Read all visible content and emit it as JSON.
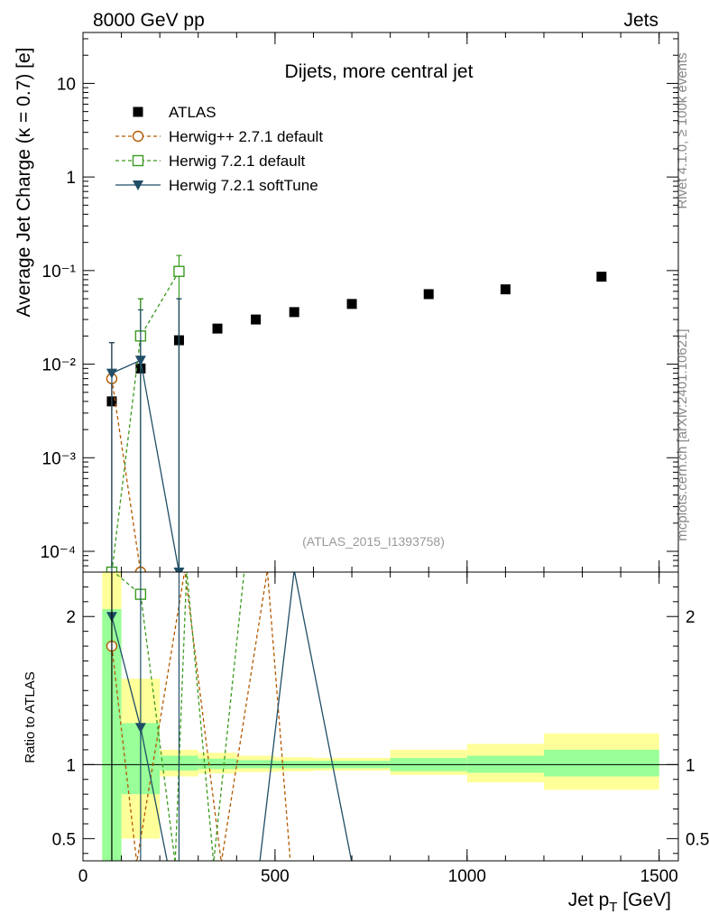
{
  "header": {
    "left": "8000 GeV pp",
    "right": "Jets"
  },
  "side_labels": {
    "rivet": "Rivet 4.1.0, ≥ 100k events",
    "mcplots": "mcplots.cern.ch [arXiv:2401.10621]"
  },
  "chart_data": {
    "type": "scatter",
    "title": "Dijets, more central jet",
    "analysis_tag": "(ATLAS_2015_I1393758)",
    "xlabel": "Jet p",
    "xlabel_sub": "T",
    "xlabel_unit": " [GeV]",
    "ylabel": "Average Jet Charge (κ = 0.7) [e]",
    "ratio_ylabel": "Ratio to ATLAS",
    "xlim": [
      0,
      1550
    ],
    "ylim": [
      6e-05,
      35
    ],
    "yscale": "log",
    "ratio_ylim": [
      0.35,
      2.3
    ],
    "ratio_line": 1,
    "x_ticks": [
      0,
      500,
      1000,
      1500
    ],
    "x_tick_labels": [
      "0",
      "500",
      "1000",
      "1500"
    ],
    "y_ticks": [
      0.0001,
      0.001,
      0.01,
      0.1,
      1,
      10
    ],
    "y_tick_labels": [
      "10⁻⁴",
      "10⁻³",
      "10⁻²",
      "10⁻¹",
      "1",
      "10"
    ],
    "ratio_ticks": [
      0.5,
      1,
      2
    ],
    "ratio_tick_labels": [
      "0.5",
      "1",
      "2"
    ],
    "bins": [
      [
        50,
        100
      ],
      [
        100,
        200
      ],
      [
        200,
        300
      ],
      [
        300,
        400
      ],
      [
        400,
        500
      ],
      [
        500,
        600
      ],
      [
        600,
        800
      ],
      [
        800,
        1000
      ],
      [
        1000,
        1200
      ],
      [
        1200,
        1500
      ]
    ],
    "x": [
      75,
      150,
      250,
      350,
      450,
      550,
      700,
      900,
      1100,
      1350
    ],
    "ratio_bands": {
      "inner_lo": [
        0.3,
        0.8,
        0.96,
        0.97,
        0.975,
        0.975,
        0.975,
        0.955,
        0.945,
        0.92
      ],
      "inner_hi": [
        2.05,
        1.28,
        1.06,
        1.04,
        1.03,
        1.025,
        1.025,
        1.045,
        1.06,
        1.1
      ],
      "outer_lo": [
        0.3,
        0.5,
        0.92,
        0.94,
        0.95,
        0.955,
        0.96,
        0.93,
        0.88,
        0.83
      ],
      "outer_hi": [
        2.3,
        1.58,
        1.1,
        1.08,
        1.06,
        1.05,
        1.045,
        1.1,
        1.14,
        1.21
      ]
    },
    "series": [
      {
        "name": "ATLAS",
        "color": "#000000",
        "marker": "square-filled",
        "line": "none",
        "values": [
          0.004,
          0.009,
          0.018,
          0.024,
          0.03,
          0.036,
          0.044,
          0.056,
          0.063,
          0.086
        ],
        "err_hi": [
          0.017,
          0.05,
          0.05,
          null,
          null,
          null,
          null,
          null,
          null,
          null
        ],
        "err_lo": [
          1e-05,
          1e-05,
          1e-05,
          null,
          null,
          null,
          null,
          null,
          null,
          null
        ]
      },
      {
        "name": "Herwig++ 2.7.1 default",
        "color": "#b35900",
        "marker": "circle-open",
        "line": "dashed",
        "values": [
          0.007,
          6e-05,
          null
        ],
        "ratio": [
          1.8,
          0.3,
          2.6,
          0.3,
          2.6,
          0.3
        ],
        "ratio_x": [
          75,
          140,
          265,
          360,
          480,
          540
        ],
        "err_hi": [
          0.017,
          null,
          null
        ],
        "err_lo": [
          1e-05,
          null,
          null
        ]
      },
      {
        "name": "Herwig 7.2.1 default",
        "color": "#3a9a1e",
        "marker": "square-open",
        "line": "dashed",
        "values": [
          6e-05,
          0.02,
          0.098
        ],
        "ratio": [
          2.4,
          2.15,
          0.3,
          2.6,
          0.3,
          2.6
        ],
        "ratio_x": [
          75,
          150,
          240,
          270,
          340,
          420
        ],
        "err_hi": [
          null,
          0.05,
          0.145
        ],
        "err_lo": [
          null,
          1e-05,
          1e-05
        ]
      },
      {
        "name": "Herwig 7.2.1 softTune",
        "color": "#1f4e66",
        "marker": "triangle-down-filled",
        "line": "solid",
        "values": [
          0.008,
          0.011,
          6e-05
        ],
        "ratio": [
          2.0,
          1.25,
          0.3,
          0.3,
          2.6,
          0.3
        ],
        "ratio_x": [
          75,
          150,
          220,
          460,
          550,
          700
        ],
        "err_hi": [
          0.017,
          0.038,
          0.05
        ],
        "err_lo": [
          1e-05,
          1e-05,
          1e-05
        ]
      }
    ]
  }
}
